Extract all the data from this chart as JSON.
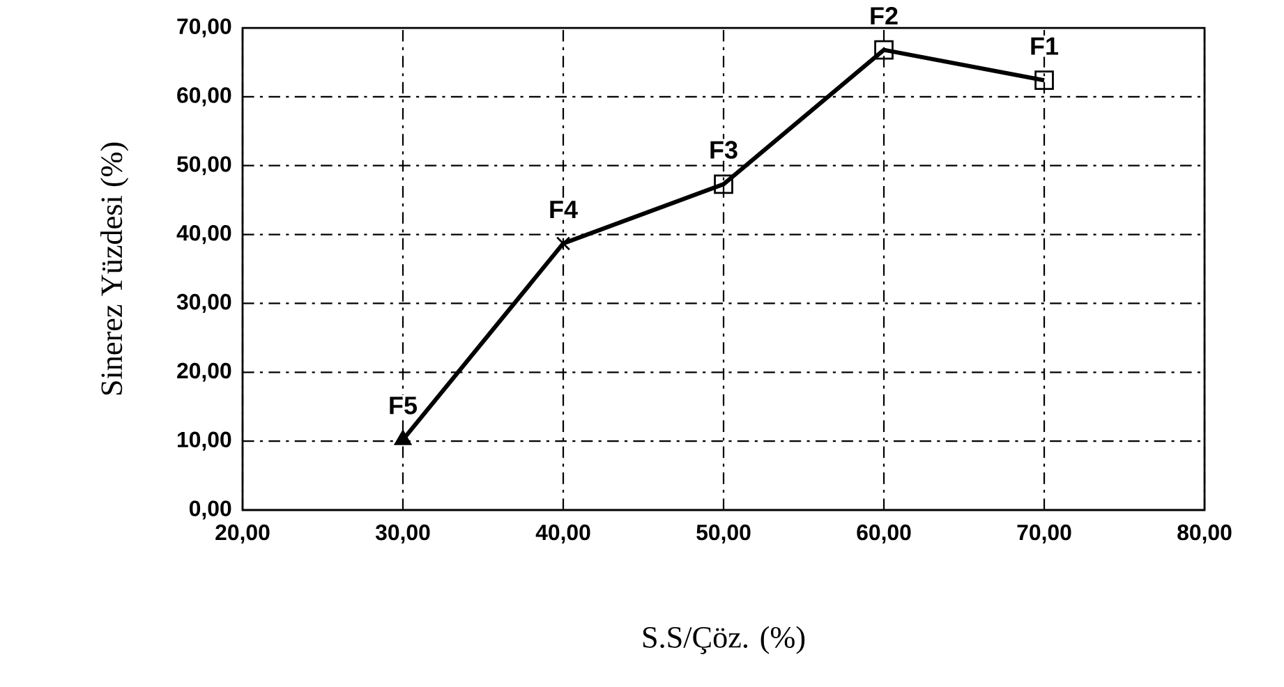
{
  "chart_data": {
    "type": "line",
    "xlabel": "S.S/Çöz. (%)",
    "ylabel": "Sinerez Yüzdesi (%)",
    "x": [
      30,
      40,
      50,
      60,
      70
    ],
    "series": [
      {
        "color": "#000000",
        "values": [
          10.2,
          38.7,
          47.3,
          66.8,
          62.4
        ],
        "marker": "none"
      },
      {
        "type": "scatter",
        "color": "#000000",
        "x": [
          30
        ],
        "values": [
          10.2
        ],
        "marker": "triangle"
      },
      {
        "type": "scatter",
        "color": "#000000",
        "x": [
          40
        ],
        "values": [
          38.7
        ],
        "marker": "cross"
      },
      {
        "type": "scatter",
        "color": "#000000",
        "x": [
          50,
          60,
          70
        ],
        "values": [
          47.3,
          66.8,
          62.4
        ],
        "marker": "square"
      }
    ],
    "xlim": [
      20,
      80
    ],
    "ylim": [
      0,
      70
    ],
    "xticks": [
      {
        "value": 20,
        "label": "20,00"
      },
      {
        "value": 30,
        "label": "30,00"
      },
      {
        "value": 40,
        "label": "40,00"
      },
      {
        "value": 50,
        "label": "50,00"
      },
      {
        "value": 60,
        "label": "60,00"
      },
      {
        "value": 70,
        "label": "70,00"
      },
      {
        "value": 80,
        "label": "80,00"
      }
    ],
    "yticks": [
      {
        "value": 0,
        "label": "0,00"
      },
      {
        "value": 10,
        "label": "10,00"
      },
      {
        "value": 20,
        "label": "20,00"
      },
      {
        "value": 30,
        "label": "30,00"
      },
      {
        "value": 40,
        "label": "40,00"
      },
      {
        "value": 50,
        "label": "50,00"
      },
      {
        "value": 60,
        "label": "60,00"
      },
      {
        "value": 70,
        "label": "70,00"
      }
    ],
    "grid": true,
    "line_style": "solid",
    "annotations": [
      {
        "text": "F5",
        "x": 30,
        "y": 10.2
      },
      {
        "text": "F4",
        "x": 40,
        "y": 38.7
      },
      {
        "text": "F3",
        "x": 50,
        "y": 47.3
      },
      {
        "text": "F2",
        "x": 60,
        "y": 66.8
      },
      {
        "text": "F1",
        "x": 70,
        "y": 62.4
      }
    ]
  }
}
